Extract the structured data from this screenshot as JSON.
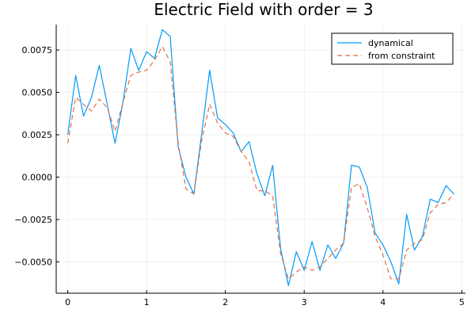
{
  "chart_data": {
    "type": "line",
    "title": "Electric Field with order = 3",
    "xlabel": "",
    "ylabel": "",
    "xlim": [
      -0.147,
      5.047
    ],
    "ylim": [
      -0.00685,
      0.009
    ],
    "xticks": [
      0,
      1,
      2,
      3,
      4,
      5
    ],
    "xtick_labels": [
      "0",
      "1",
      "2",
      "3",
      "4",
      "5"
    ],
    "yticks": [
      -0.005,
      -0.0025,
      0.0,
      0.0025,
      0.005,
      0.0075
    ],
    "ytick_labels": [
      "−0.0050",
      "−0.0025",
      "0.0000",
      "0.0025",
      "0.0050",
      "0.0075"
    ],
    "grid": true,
    "legend_position": "top-right",
    "x": [
      0,
      0.1,
      0.2,
      0.3,
      0.4,
      0.5,
      0.6,
      0.7,
      0.8,
      0.9,
      1.0,
      1.1,
      1.2,
      1.3,
      1.4,
      1.5,
      1.6,
      1.7,
      1.8,
      1.9,
      2.0,
      2.1,
      2.2,
      2.3,
      2.4,
      2.5,
      2.6,
      2.7,
      2.8,
      2.9,
      3.0,
      3.1,
      3.2,
      3.3,
      3.4,
      3.5,
      3.6,
      3.7,
      3.8,
      3.9,
      4.0,
      4.1,
      4.2,
      4.3,
      4.4,
      4.5,
      4.6,
      4.7,
      4.8,
      4.9
    ],
    "series": [
      {
        "name": "dynamical",
        "color": "#009AFA",
        "dash": "solid",
        "values": [
          0.0025,
          0.006,
          0.0036,
          0.0047,
          0.0066,
          0.0043,
          0.002,
          0.0044,
          0.0076,
          0.0063,
          0.0074,
          0.007,
          0.0087,
          0.0083,
          0.0018,
          0.0,
          -0.001,
          0.0026,
          0.0063,
          0.0035,
          0.0031,
          0.0026,
          0.0015,
          0.0021,
          0.0002,
          -0.0011,
          0.0007,
          -0.0042,
          -0.0064,
          -0.0044,
          -0.0055,
          -0.0038,
          -0.0055,
          -0.004,
          -0.0048,
          -0.0039,
          0.0007,
          0.0006,
          -0.0006,
          -0.0033,
          -0.004,
          -0.005,
          -0.0063,
          -0.0022,
          -0.0043,
          -0.0035,
          -0.0013,
          -0.0015,
          -0.0005,
          -0.001
        ]
      },
      {
        "name": "from constraint",
        "color": "#E26F46",
        "dash": "dashed",
        "values": [
          0.002,
          0.0047,
          0.0043,
          0.0039,
          0.0046,
          0.0041,
          0.0027,
          0.0044,
          0.006,
          0.0062,
          0.0063,
          0.0069,
          0.0077,
          0.0068,
          0.002,
          -0.0007,
          -0.001,
          0.0022,
          0.0043,
          0.0032,
          0.0026,
          0.0024,
          0.0015,
          0.0009,
          -0.0008,
          -0.0008,
          -0.0011,
          -0.0045,
          -0.006,
          -0.0056,
          -0.0053,
          -0.0055,
          -0.0053,
          -0.0048,
          -0.0043,
          -0.0039,
          -0.0006,
          -0.0004,
          -0.0018,
          -0.0035,
          -0.0046,
          -0.006,
          -0.006,
          -0.0043,
          -0.0039,
          -0.0037,
          -0.0021,
          -0.0016,
          -0.0015,
          -0.001
        ]
      }
    ]
  }
}
